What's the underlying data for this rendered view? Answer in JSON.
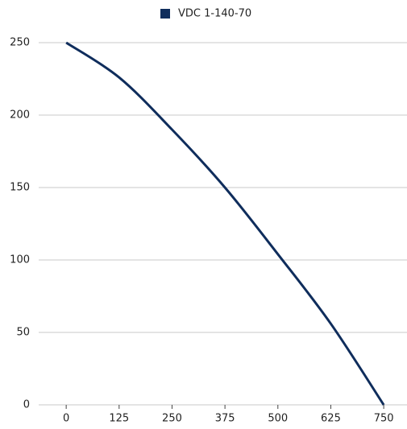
{
  "chart_data": {
    "type": "line",
    "x": [
      0,
      125,
      250,
      375,
      500,
      625,
      750
    ],
    "series": [
      {
        "name": "VDC 1-140-70",
        "color": "#0f2d5c",
        "values": [
          250,
          226,
          190,
          150,
          104,
          56,
          0
        ]
      }
    ],
    "xlim": [
      -65,
      805
    ],
    "xticks": [
      0,
      125,
      250,
      375,
      500,
      625,
      750
    ],
    "ylim": [
      0,
      250
    ],
    "yticks": [
      0,
      50,
      100,
      150,
      200,
      250
    ],
    "grid": true,
    "legend": "top"
  }
}
